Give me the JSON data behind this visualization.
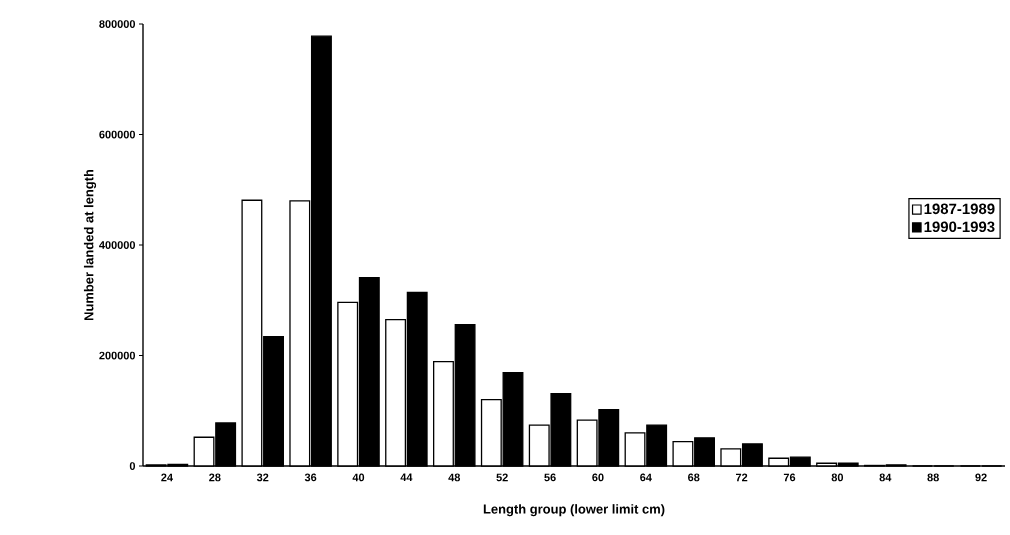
{
  "chart_data": {
    "type": "bar",
    "xlabel": "Length group (lower limit cm)",
    "ylabel": "Number landed at length",
    "categories": [
      "24",
      "28",
      "32",
      "36",
      "40",
      "44",
      "48",
      "52",
      "56",
      "60",
      "64",
      "68",
      "72",
      "76",
      "80",
      "84",
      "88",
      "92"
    ],
    "series": [
      {
        "name": "1987-1989",
        "color": "#ffffff",
        "values": [
          2000,
          52000,
          481000,
          480000,
          296000,
          265000,
          189000,
          120000,
          74000,
          83000,
          60000,
          44000,
          31000,
          14000,
          5000,
          1000,
          0,
          0
        ]
      },
      {
        "name": "1990-1993",
        "color": "#000000",
        "values": [
          3000,
          78000,
          234000,
          778000,
          341000,
          314000,
          256000,
          169000,
          131000,
          102000,
          74000,
          51000,
          40000,
          16000,
          5000,
          2000,
          0,
          0
        ]
      }
    ],
    "ylim": [
      0,
      800000
    ],
    "yticks": [
      0,
      200000,
      400000,
      600000,
      800000
    ],
    "grid": false,
    "legend": "right"
  }
}
